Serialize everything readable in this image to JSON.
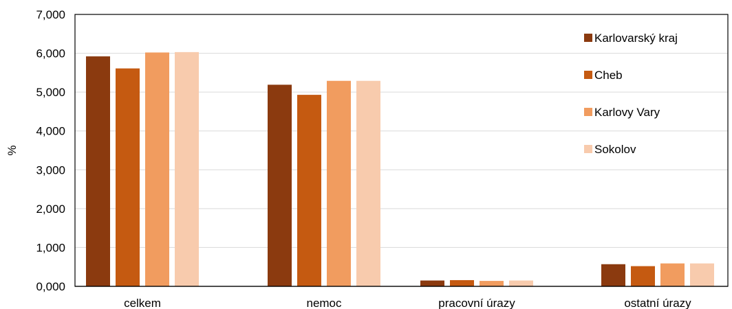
{
  "chart_data": {
    "type": "bar",
    "title": "",
    "xlabel": "",
    "ylabel": "%",
    "ylim": [
      0,
      7
    ],
    "yticks": [
      "0,000",
      "1,000",
      "2,000",
      "3,000",
      "4,000",
      "5,000",
      "6,000",
      "7,000"
    ],
    "categories": [
      "celkem",
      "nemoc",
      "pracovní úrazy",
      "ostatní úrazy"
    ],
    "series": [
      {
        "name": "Karlovarský kraj",
        "color": "#8B3A0F",
        "values": [
          5.92,
          5.19,
          0.15,
          0.57
        ]
      },
      {
        "name": "Cheb",
        "color": "#C55A11",
        "values": [
          5.61,
          4.93,
          0.16,
          0.52
        ]
      },
      {
        "name": "Karlovy Vary",
        "color": "#F19C5F",
        "values": [
          6.02,
          5.29,
          0.14,
          0.59
        ]
      },
      {
        "name": "Sokolov",
        "color": "#F8CBAD",
        "values": [
          6.03,
          5.29,
          0.15,
          0.59
        ]
      }
    ],
    "legend": {
      "position": "top-right"
    },
    "grid": true
  }
}
